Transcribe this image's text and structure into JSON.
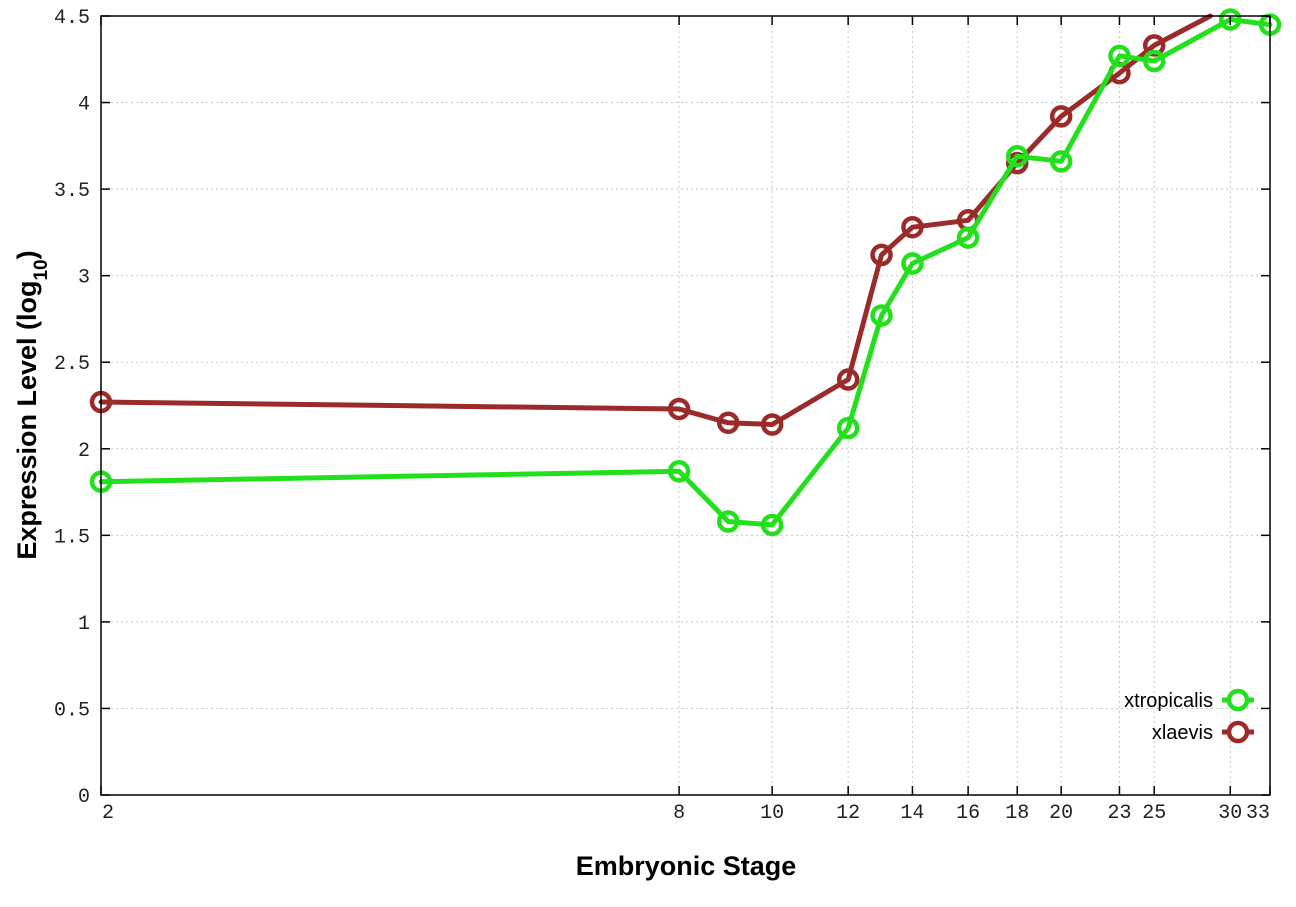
{
  "chart_data": {
    "type": "line",
    "xlabel": "Embryonic Stage",
    "ylabel": {
      "main": "Expression Level (log",
      "subscript": "10",
      "suffix": ")"
    },
    "ylim": [
      0,
      4.5
    ],
    "xlim": [
      2,
      33
    ],
    "x_scale": "log",
    "y_ticks": [
      "0",
      "0.5",
      "1",
      "1.5",
      "2",
      "2.5",
      "3",
      "3.5",
      "4",
      "4.5"
    ],
    "x_ticks": [
      "2",
      "8",
      "10",
      "12",
      "14",
      "16",
      "18",
      "20",
      "23",
      "25",
      "30",
      "33"
    ],
    "grid": true,
    "legend_position": "bottom-right",
    "series": [
      {
        "name": "xtropicalis",
        "color": "#22e01c",
        "marker": "circle",
        "points": [
          {
            "x": "2",
            "y": 1.81
          },
          {
            "x": "8",
            "y": 1.87
          },
          {
            "x": "9",
            "y": 1.58
          },
          {
            "x": "10",
            "y": 1.56
          },
          {
            "x": "12",
            "y": 2.12
          },
          {
            "x": "13",
            "y": 2.77
          },
          {
            "x": "14",
            "y": 3.07
          },
          {
            "x": "16",
            "y": 3.22
          },
          {
            "x": "18",
            "y": 3.69
          },
          {
            "x": "20",
            "y": 3.66
          },
          {
            "x": "23",
            "y": 4.27
          },
          {
            "x": "25",
            "y": 4.24
          },
          {
            "x": "30",
            "y": 4.48
          },
          {
            "x": "33",
            "y": 4.45
          }
        ]
      },
      {
        "name": "xlaevis",
        "color": "#9b2a2a",
        "marker": "circle",
        "points": [
          {
            "x": "2",
            "y": 2.27
          },
          {
            "x": "8",
            "y": 2.23
          },
          {
            "x": "9",
            "y": 2.15
          },
          {
            "x": "10",
            "y": 2.14
          },
          {
            "x": "12",
            "y": 2.4
          },
          {
            "x": "13",
            "y": 3.12
          },
          {
            "x": "14",
            "y": 3.28
          },
          {
            "x": "16",
            "y": 3.32
          },
          {
            "x": "18",
            "y": 3.65
          },
          {
            "x": "20",
            "y": 3.92
          },
          {
            "x": "23",
            "y": 4.17
          },
          {
            "x": "25",
            "y": 4.33
          }
        ]
      }
    ]
  }
}
